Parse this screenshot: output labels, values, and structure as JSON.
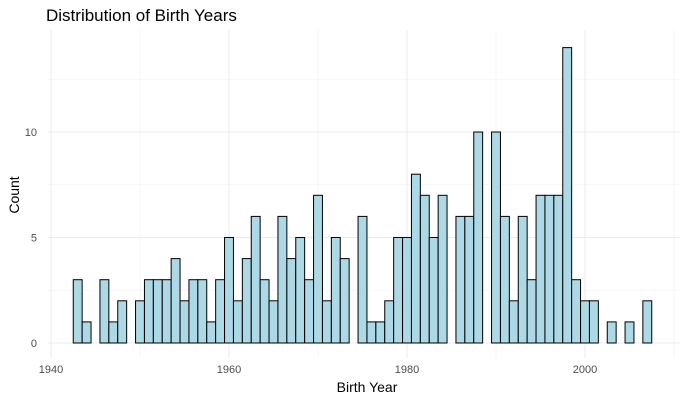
{
  "chart_data": {
    "type": "bar",
    "title": "Distribution of Birth Years",
    "xlabel": "Birth Year",
    "ylabel": "Count",
    "x": [
      1943,
      1944,
      1945,
      1946,
      1947,
      1948,
      1949,
      1950,
      1951,
      1952,
      1953,
      1954,
      1955,
      1956,
      1957,
      1958,
      1959,
      1960,
      1961,
      1962,
      1963,
      1964,
      1965,
      1966,
      1967,
      1968,
      1969,
      1970,
      1971,
      1972,
      1973,
      1974,
      1975,
      1976,
      1977,
      1978,
      1979,
      1980,
      1981,
      1982,
      1983,
      1984,
      1985,
      1986,
      1987,
      1988,
      1989,
      1990,
      1991,
      1992,
      1993,
      1994,
      1995,
      1996,
      1997,
      1998,
      1999,
      2000,
      2001,
      2002,
      2003,
      2004,
      2005,
      2006,
      2007
    ],
    "values": [
      3,
      1,
      0,
      3,
      1,
      2,
      0,
      2,
      3,
      3,
      3,
      4,
      2,
      3,
      3,
      1,
      3,
      5,
      2,
      4,
      6,
      3,
      2,
      6,
      4,
      5,
      3,
      7,
      2,
      5,
      4,
      0,
      6,
      1,
      1,
      2,
      5,
      5,
      8,
      7,
      5,
      7,
      0,
      6,
      6,
      10,
      0,
      10,
      6,
      2,
      6,
      3,
      7,
      7,
      7,
      14,
      3,
      2,
      2,
      0,
      1,
      0,
      1,
      0,
      2
    ],
    "xlim": [
      1940,
      2008
    ],
    "ylim": [
      0,
      14.5
    ],
    "x_ticks": [
      1940,
      1960,
      1980,
      2000
    ],
    "x_tick_labels": [
      "1940",
      "1960",
      "1980",
      "2000"
    ],
    "y_ticks": [
      0,
      5,
      10
    ],
    "y_tick_labels": [
      "0",
      "5",
      "10"
    ],
    "grid": true,
    "bar_color": "#add8e6",
    "bar_edge_color": "#000000",
    "legend": "none"
  }
}
